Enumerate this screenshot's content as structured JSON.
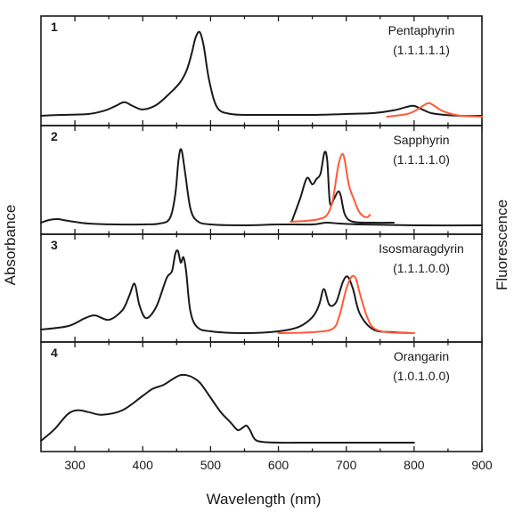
{
  "chart_data": {
    "type": "line",
    "xlabel": "Wavelength (nm)",
    "ylabel_left": "Absorbance",
    "ylabel_right": "Fluorescence",
    "xlim": [
      250,
      900
    ],
    "x_ticks": [
      300,
      400,
      500,
      600,
      700,
      800,
      900
    ],
    "colors": {
      "absorbance": "#1a1a1a",
      "fluorescence": "#ff5a36"
    },
    "panels": [
      {
        "number": "1",
        "name": "Pentaphyrin",
        "code": "(1.1.1.1.1)",
        "series": [
          {
            "kind": "absorbance",
            "x": [
              250,
              280,
              320,
              345,
              360,
              373,
              385,
              400,
              420,
              440,
              455,
              465,
              472,
              478,
              484,
              490,
              498,
              510,
              530,
              560,
              600,
              650,
              700,
              740,
              770,
              790,
              800,
              812,
              825,
              845,
              870,
              900
            ],
            "y": [
              0.01,
              0.02,
              0.03,
              0.07,
              0.12,
              0.16,
              0.12,
              0.08,
              0.13,
              0.26,
              0.38,
              0.52,
              0.7,
              0.88,
              0.94,
              0.78,
              0.4,
              0.1,
              0.03,
              0.02,
              0.02,
              0.02,
              0.03,
              0.04,
              0.07,
              0.11,
              0.12,
              0.08,
              0.04,
              0.02,
              0.01,
              0.01
            ]
          },
          {
            "kind": "fluorescence",
            "x": [
              760,
              790,
              805,
              815,
              822,
              830,
              840,
              855,
              870,
              900
            ],
            "y": [
              0.0,
              0.03,
              0.08,
              0.13,
              0.15,
              0.12,
              0.07,
              0.03,
              0.01,
              0.0
            ]
          }
        ]
      },
      {
        "number": "2",
        "name": "Sapphyrin",
        "code": "(1.1.1.1.0)",
        "series": [
          {
            "kind": "absorbance",
            "x": [
              250,
              262,
              275,
              290,
              320,
              360,
              400,
              425,
              440,
              448,
              453,
              457,
              462,
              470,
              480,
              500,
              550,
              600,
              650,
              670,
              690,
              720,
              800,
              900
            ],
            "y": [
              0.03,
              0.06,
              0.07,
              0.05,
              0.02,
              0.01,
              0.01,
              0.02,
              0.08,
              0.35,
              0.75,
              0.85,
              0.62,
              0.2,
              0.05,
              0.01,
              0.0,
              0.01,
              0.01,
              0.03,
              0.02,
              0.01,
              0.0,
              0.0
            ]
          },
          {
            "kind": "absorbance_inset",
            "x": [
              620,
              632,
              642,
              650,
              656,
              662,
              668,
              672,
              676,
              682,
              688,
              692,
              698,
              710,
              740,
              770
            ],
            "y": [
              0.05,
              0.3,
              0.53,
              0.46,
              0.52,
              0.58,
              0.82,
              0.72,
              0.25,
              0.3,
              0.38,
              0.33,
              0.12,
              0.04,
              0.03,
              0.03
            ]
          },
          {
            "kind": "fluorescence_inset",
            "x": [
              618,
              640,
              660,
              672,
              680,
              688,
              694,
              698,
              704,
              712,
              720,
              730,
              735
            ],
            "y": [
              0.04,
              0.05,
              0.07,
              0.12,
              0.28,
              0.66,
              0.8,
              0.72,
              0.45,
              0.28,
              0.14,
              0.09,
              0.12
            ]
          }
        ]
      },
      {
        "number": "3",
        "name": "Isosmaragdyrin",
        "code": "(1.1.1.0.0)",
        "series": [
          {
            "kind": "absorbance",
            "x": [
              250,
              290,
              315,
              330,
              350,
              370,
              380,
              388,
              395,
              405,
              420,
              435,
              443,
              448,
              452,
              456,
              460,
              464,
              470,
              480,
              500,
              550,
              600,
              630,
              650,
              660,
              667,
              675,
              685,
              695,
              702,
              710,
              720,
              740,
              770,
              800
            ],
            "y": [
              0.04,
              0.08,
              0.17,
              0.2,
              0.15,
              0.26,
              0.42,
              0.56,
              0.32,
              0.17,
              0.3,
              0.62,
              0.7,
              0.9,
              0.93,
              0.8,
              0.86,
              0.7,
              0.26,
              0.07,
              0.02,
              0.0,
              0.02,
              0.07,
              0.18,
              0.32,
              0.5,
              0.32,
              0.35,
              0.58,
              0.64,
              0.5,
              0.22,
              0.04,
              0.01,
              0.0
            ]
          },
          {
            "kind": "fluorescence",
            "x": [
              600,
              650,
              680,
              690,
              700,
              708,
              714,
              720,
              730,
              740,
              760,
              800
            ],
            "y": [
              0.0,
              0.01,
              0.05,
              0.2,
              0.5,
              0.64,
              0.62,
              0.45,
              0.2,
              0.06,
              0.01,
              0.0
            ]
          }
        ]
      },
      {
        "number": "4",
        "name": "Orangarin",
        "code": "(1.0.1.0.0)",
        "series": [
          {
            "kind": "absorbance",
            "x": [
              250,
              270,
              290,
              305,
              320,
              340,
              370,
              400,
              415,
              430,
              445,
              455,
              465,
              475,
              485,
              500,
              515,
              530,
              540,
              548,
              553,
              558,
              565,
              575,
              600,
              650,
              700,
              800
            ],
            "y": [
              0.02,
              0.15,
              0.32,
              0.36,
              0.34,
              0.31,
              0.36,
              0.52,
              0.6,
              0.64,
              0.71,
              0.75,
              0.75,
              0.72,
              0.66,
              0.5,
              0.34,
              0.22,
              0.14,
              0.17,
              0.19,
              0.14,
              0.04,
              0.01,
              0.0,
              0.0,
              0.0,
              0.0
            ]
          }
        ]
      }
    ]
  }
}
